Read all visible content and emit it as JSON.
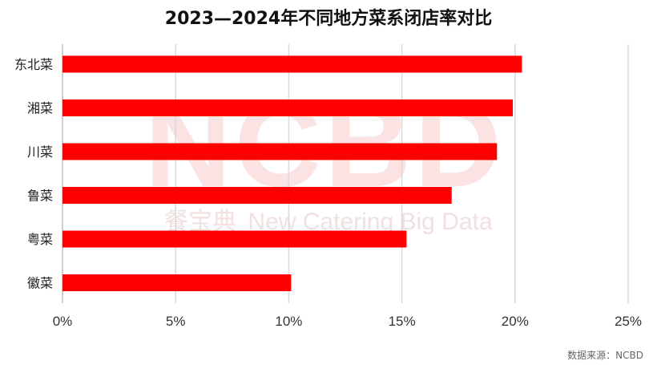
{
  "watermark": {
    "logo_text": "NCBD",
    "cn_text": "餐宝典",
    "en_text": "New Catering Big Data"
  },
  "source_text": "数据来源：NCBD",
  "colors": {
    "bar": "#ff0000",
    "grid": "#d9d9d9",
    "axis": "#bfbfbf"
  },
  "chart_data": {
    "type": "bar",
    "orientation": "horizontal",
    "title": "2023—2024年不同地方菜系闭店率对比",
    "categories": [
      "东北菜",
      "湘菜",
      "川菜",
      "鲁菜",
      "粤菜",
      "徽菜"
    ],
    "values": [
      20.3,
      19.9,
      19.2,
      17.2,
      15.2,
      10.1
    ],
    "unit": "%",
    "xlim": [
      0,
      25
    ],
    "x_ticks": [
      0,
      5,
      10,
      15,
      20,
      25
    ],
    "x_tick_labels": [
      "0%",
      "5%",
      "10%",
      "15%",
      "20%",
      "25%"
    ],
    "grid": true,
    "legend": "none"
  }
}
